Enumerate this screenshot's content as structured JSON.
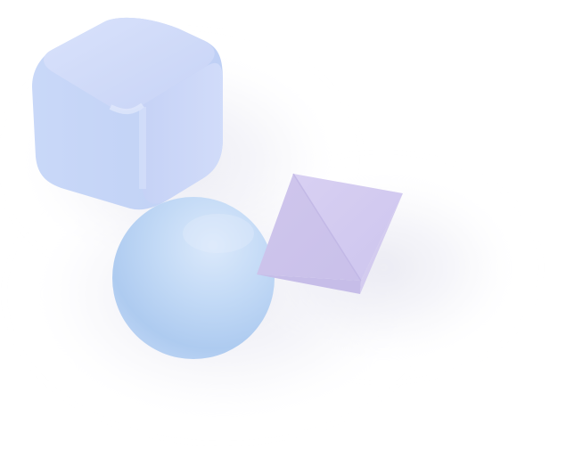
{
  "scene": {
    "background_color": "#ffffff",
    "objects": [
      {
        "name": "rounded-cube",
        "color": "#c9d6f7"
      },
      {
        "name": "sphere",
        "color": "#c4dcf6"
      },
      {
        "name": "octahedron",
        "color": "#d5cdee"
      }
    ]
  }
}
